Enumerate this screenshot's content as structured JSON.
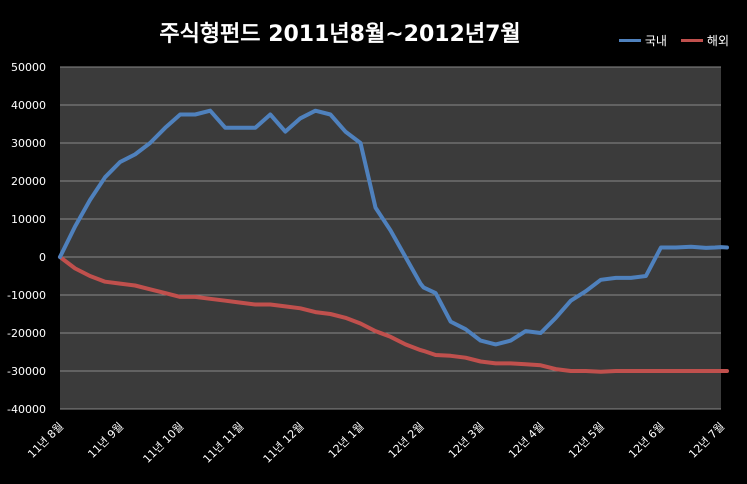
{
  "chart_data": {
    "type": "line",
    "title": "주식형펀드  2011년8월~2012년7월",
    "legend_position": "top-right",
    "ylim": [
      -40000,
      50000
    ],
    "yticks": [
      50000,
      40000,
      30000,
      20000,
      10000,
      0,
      -10000,
      -20000,
      -30000,
      -40000
    ],
    "ytick_labels": [
      "50000",
      "40000",
      "30000",
      "20000",
      "10000",
      "0",
      "-10000",
      "-20000",
      "-30000",
      "-40000"
    ],
    "grid": true,
    "x_tick_labels": [
      "11년 8월",
      "11년 9월",
      "11년 10월",
      "11년 11월",
      "11년 12월",
      "12년 1월",
      "12년 2월",
      "12년 3월",
      "12년 4월",
      "12년 5월",
      "12년 6월",
      "12년 7월"
    ],
    "x": [
      0,
      0.25,
      0.5,
      0.75,
      1,
      1.25,
      1.5,
      1.75,
      2,
      2.25,
      2.5,
      2.75,
      3,
      3.25,
      3.5,
      3.75,
      4,
      4.25,
      4.5,
      4.75,
      5,
      5.25,
      5.5,
      5.75,
      6,
      6.05,
      6.25,
      6.5,
      6.75,
      7,
      7.25,
      7.5,
      7.75,
      8,
      8.25,
      8.5,
      8.75,
      9,
      9.25,
      9.5,
      9.75,
      10,
      10.25,
      10.5,
      10.75,
      10.9,
      11,
      11.1
    ],
    "series": [
      {
        "name": "국내",
        "color": "#4f81bd",
        "values": [
          0,
          8000,
          15000,
          21000,
          25000,
          27000,
          30000,
          34000,
          37500,
          37500,
          38500,
          34000,
          34000,
          34000,
          37500,
          33000,
          36500,
          38500,
          37500,
          33000,
          30000,
          13000,
          7000,
          0,
          -7000,
          -8000,
          -9500,
          -17000,
          -19000,
          -22000,
          -23000,
          -22000,
          -19500,
          -20000,
          -16000,
          -11500,
          -9000,
          -6000,
          -5500,
          -5500,
          -5000,
          2500,
          2500,
          2700,
          2400,
          2500,
          2600,
          2500
        ]
      },
      {
        "name": "해외",
        "color": "#c0504d",
        "values": [
          0,
          -3000,
          -5000,
          -6500,
          -7000,
          -7500,
          -8500,
          -9500,
          -10500,
          -10500,
          -11000,
          -11500,
          -12000,
          -12500,
          -12500,
          -13000,
          -13500,
          -14500,
          -15000,
          -16000,
          -17500,
          -19500,
          -21000,
          -23000,
          -24500,
          -24700,
          -25800,
          -26000,
          -26500,
          -27500,
          -28000,
          -28000,
          -28200,
          -28500,
          -29500,
          -30000,
          -30000,
          -30200,
          -30000,
          -30000,
          -30000,
          -30000,
          -30000,
          -30000,
          -30000,
          -30000,
          -30000,
          -30000
        ]
      }
    ]
  }
}
